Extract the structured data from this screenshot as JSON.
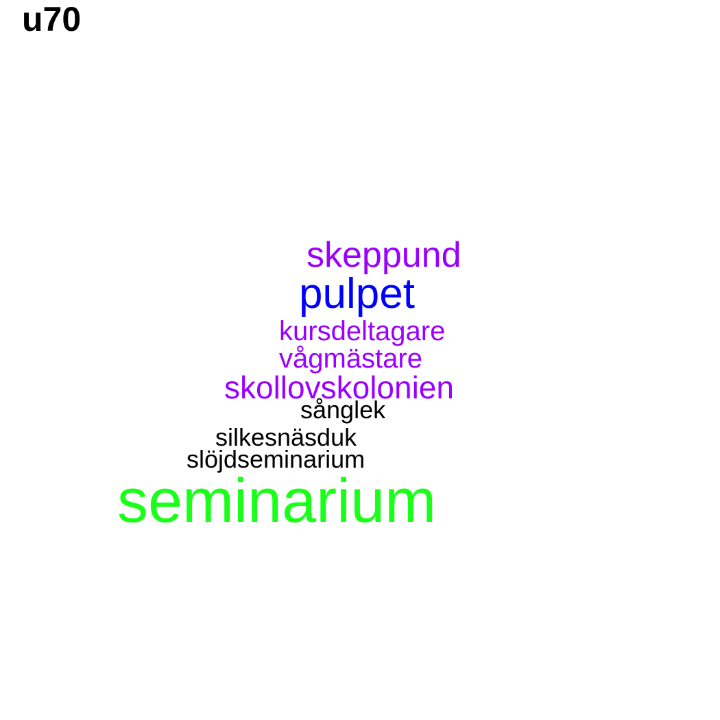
{
  "title": "u70",
  "colors": {
    "purple": "#9a00ff",
    "blue": "#0000ff",
    "green": "#1aff1a",
    "black": "#000000"
  },
  "words": [
    {
      "id": "skeppund",
      "text": "skeppund",
      "color": "#9a00ff"
    },
    {
      "id": "pulpet",
      "text": "pulpet",
      "color": "#0000ff"
    },
    {
      "id": "kursdeltagare",
      "text": "kursdeltagare",
      "color": "#9a00ff"
    },
    {
      "id": "vagmastare",
      "text": "vågmästare",
      "color": "#9a00ff"
    },
    {
      "id": "skollovskolonien",
      "text": "skollovskolonien",
      "color": "#9a00ff"
    },
    {
      "id": "sanglek",
      "text": "sånglek",
      "color": "#000000"
    },
    {
      "id": "silkesnasduk",
      "text": "silkesnäsduk",
      "color": "#000000"
    },
    {
      "id": "slojdseminarium",
      "text": "slöjdseminarium",
      "color": "#000000"
    },
    {
      "id": "seminarium",
      "text": "seminarium",
      "color": "#1aff1a"
    }
  ]
}
